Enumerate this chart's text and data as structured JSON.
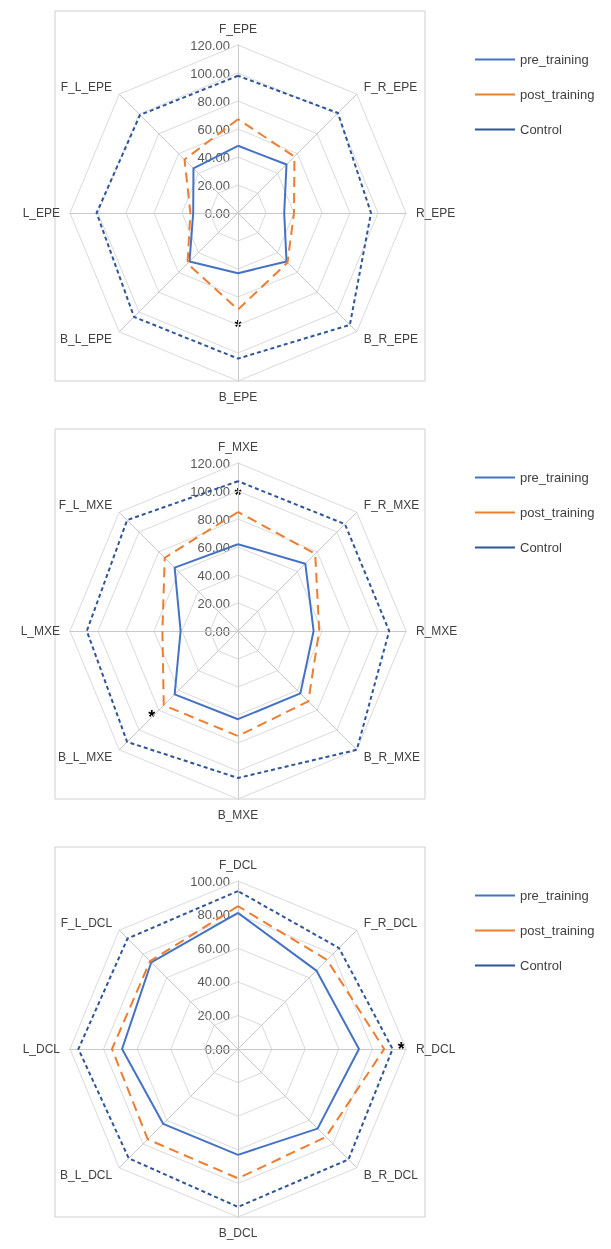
{
  "chart_data": [
    {
      "type": "radar",
      "categories": [
        "F_EPE",
        "F_R_EPE",
        "R_EPE",
        "B_R_EPE",
        "B_EPE",
        "B_L_EPE",
        "L_EPE",
        "F_L_EPE"
      ],
      "ylim": [
        0,
        120
      ],
      "yticks": [
        {
          "value": 0,
          "label": "0.00"
        },
        {
          "value": 20,
          "label": "20.00"
        },
        {
          "value": 40,
          "label": "40.00"
        },
        {
          "value": 60,
          "label": "60.00"
        },
        {
          "value": 80,
          "label": "80.00"
        },
        {
          "value": 100,
          "label": "100.00"
        },
        {
          "value": 120,
          "label": "120.00"
        }
      ],
      "grid": true,
      "legend": "right",
      "marker": "none",
      "series": [
        {
          "name": "pre_training",
          "color": "#4472c4",
          "line_style": "solid",
          "values": [
            48,
            49,
            33,
            49,
            43,
            49,
            32,
            45
          ]
        },
        {
          "name": "post_training",
          "color": "#ed7d31",
          "line_style": "dashed",
          "values": [
            67,
            57,
            40,
            50,
            69,
            51,
            34,
            54
          ]
        },
        {
          "name": "Control",
          "color": "#2f5597",
          "line_style": "dotted",
          "values": [
            98,
            101,
            95,
            113,
            104,
            105,
            101,
            99
          ]
        }
      ],
      "annotations": [
        {
          "text": "*",
          "x": "B_EPE"
        }
      ]
    },
    {
      "type": "radar",
      "categories": [
        "F_MXE",
        "F_R_MXE",
        "R_MXE",
        "B_R_MXE",
        "B_MXE",
        "B_L_MXE",
        "L_MXE",
        "F_L_MXE"
      ],
      "ylim": [
        0,
        120
      ],
      "yticks": [
        {
          "value": 0,
          "label": "0.00"
        },
        {
          "value": 20,
          "label": "20.00"
        },
        {
          "value": 40,
          "label": "40.00"
        },
        {
          "value": 60,
          "label": "60.00"
        },
        {
          "value": 80,
          "label": "80.00"
        },
        {
          "value": 100,
          "label": "100.00"
        },
        {
          "value": 120,
          "label": "120.00"
        }
      ],
      "grid": true,
      "legend": "right",
      "marker": "none",
      "series": [
        {
          "name": "pre_training",
          "color": "#4472c4",
          "line_style": "solid",
          "values": [
            62,
            68,
            54,
            63,
            63,
            64,
            41,
            64
          ]
        },
        {
          "name": "post_training",
          "color": "#ed7d31",
          "line_style": "dashed",
          "values": [
            85,
            78,
            58,
            71,
            75,
            75,
            54,
            74
          ]
        },
        {
          "name": "Control",
          "color": "#2f5597",
          "line_style": "dotted",
          "values": [
            107,
            108,
            108,
            120,
            105,
            112,
            108,
            112
          ]
        }
      ],
      "annotations": [
        {
          "text": "*",
          "x": "F_MXE"
        },
        {
          "text": "*",
          "x": "B_L_MXE"
        }
      ]
    },
    {
      "type": "radar",
      "categories": [
        "F_DCL",
        "F_R_DCL",
        "R_DCL",
        "B_R_DCL",
        "B_DCL",
        "B_L_DCL",
        "L_DCL",
        "F_L_DCL"
      ],
      "ylim": [
        0,
        100
      ],
      "yticks": [
        {
          "value": 0,
          "label": "0.00"
        },
        {
          "value": 20,
          "label": "20.00"
        },
        {
          "value": 40,
          "label": "40.00"
        },
        {
          "value": 60,
          "label": "60.00"
        },
        {
          "value": 80,
          "label": "80.00"
        },
        {
          "value": 100,
          "label": "100.00"
        }
      ],
      "grid": true,
      "legend": "right",
      "marker": "none",
      "series": [
        {
          "name": "pre_training",
          "color": "#4472c4",
          "line_style": "solid",
          "values": [
            81,
            66,
            72,
            67,
            63,
            63,
            69,
            73
          ]
        },
        {
          "name": "post_training",
          "color": "#ed7d31",
          "line_style": "dashed",
          "values": [
            85,
            75,
            87,
            74,
            77,
            76,
            75,
            74
          ]
        },
        {
          "name": "Control",
          "color": "#2f5597",
          "line_style": "dotted",
          "values": [
            94,
            85,
            92,
            93,
            94,
            92,
            95,
            93
          ]
        }
      ],
      "annotations": [
        {
          "text": "*",
          "x": "R_DCL"
        }
      ]
    }
  ]
}
